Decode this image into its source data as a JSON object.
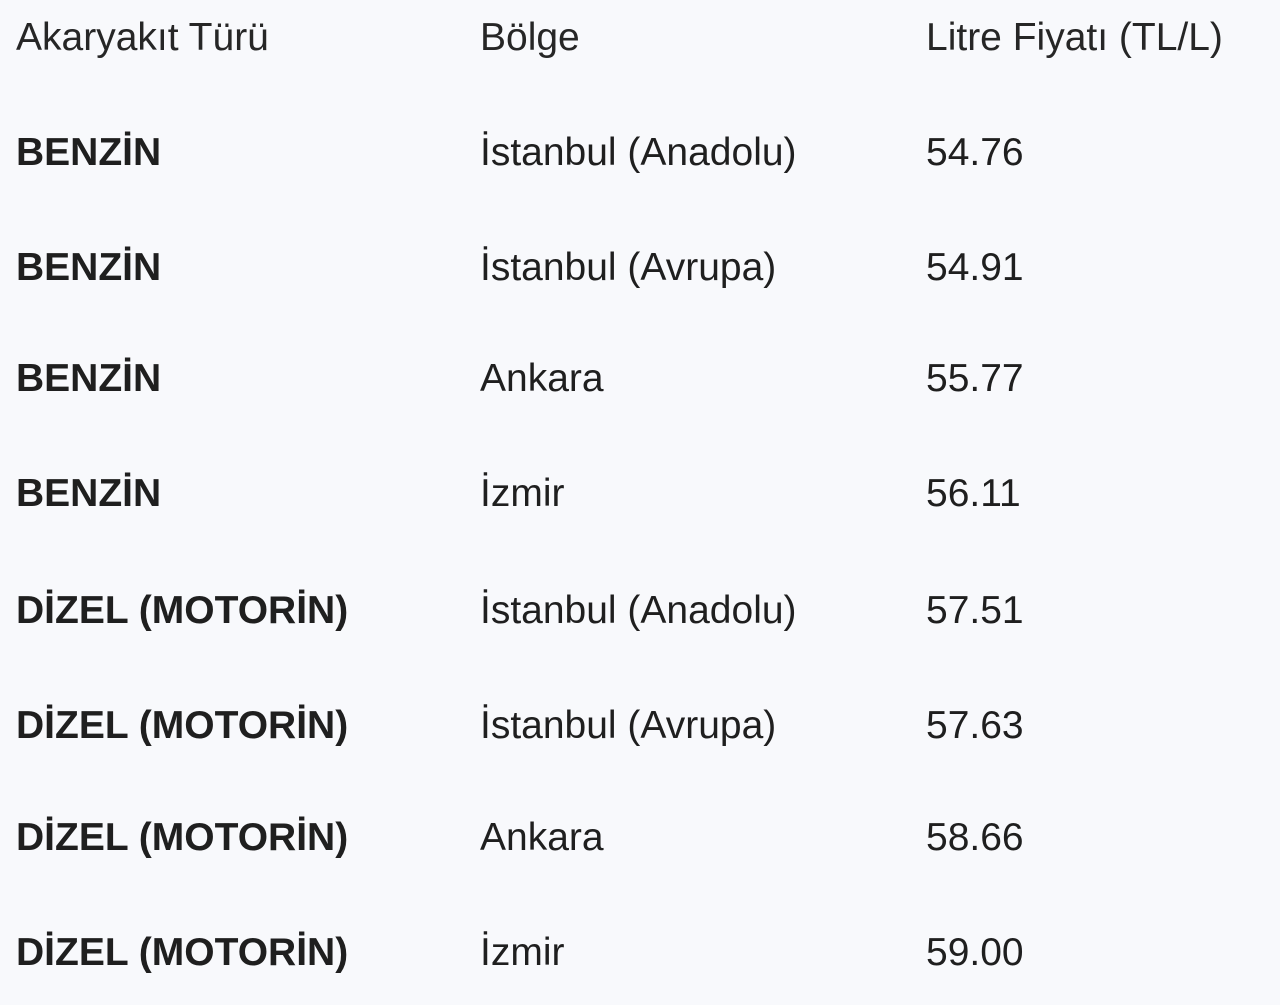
{
  "table": {
    "headers": [
      "Akaryakıt Türü",
      "Bölge",
      "Litre Fiyatı (TL/L)"
    ],
    "rows": [
      [
        "BENZİN",
        "İstanbul (Anadolu)",
        "54.76"
      ],
      [
        "BENZİN",
        "İstanbul (Avrupa)",
        "54.91"
      ],
      [
        "BENZİN",
        "Ankara",
        "55.77"
      ],
      [
        "BENZİN",
        "İzmir",
        "56.11"
      ],
      [
        "DİZEL (MOTORİN)",
        "İstanbul (Anadolu)",
        "57.51"
      ],
      [
        "DİZEL (MOTORİN)",
        "İstanbul (Avrupa)",
        "57.63"
      ],
      [
        "DİZEL (MOTORİN)",
        "Ankara",
        "58.66"
      ],
      [
        "DİZEL (MOTORİN)",
        "İzmir",
        "59.00"
      ]
    ]
  }
}
